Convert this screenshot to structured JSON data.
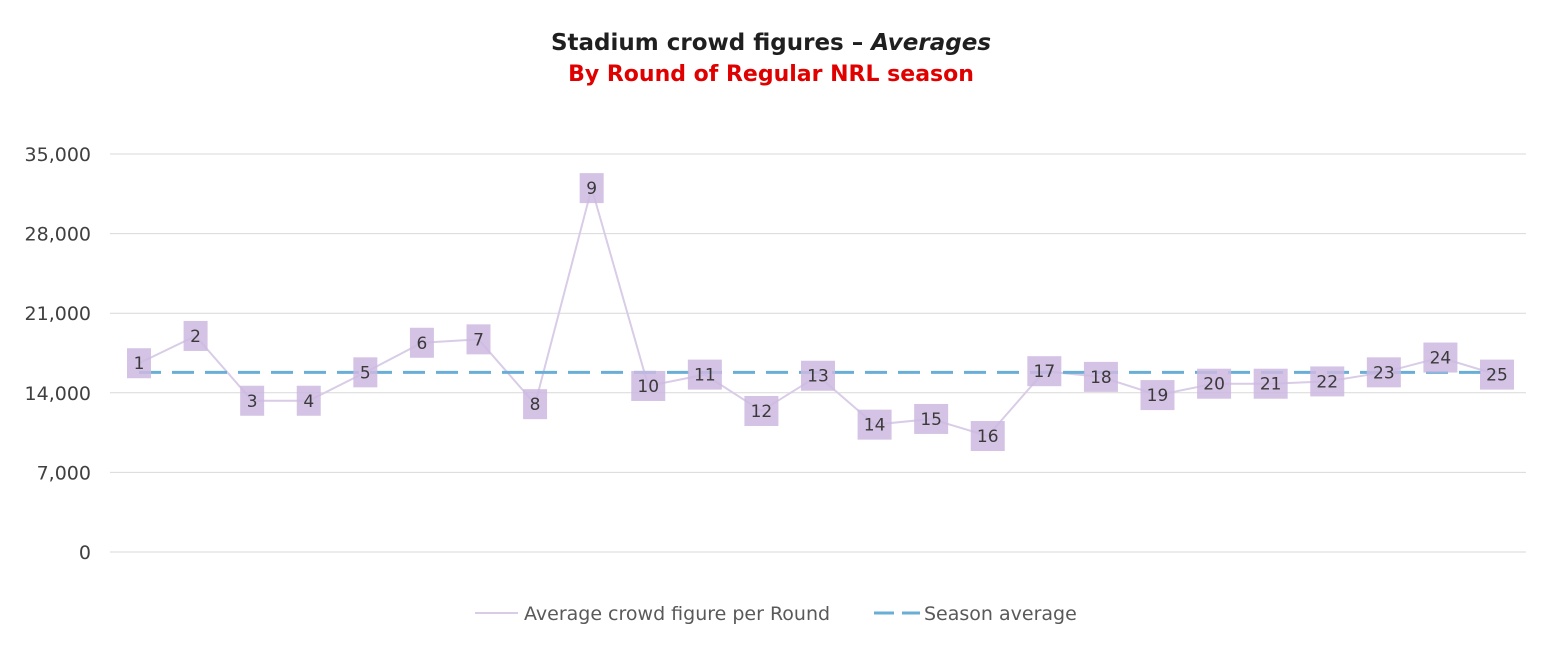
{
  "chart_data": {
    "type": "line",
    "title": "Stadium crowd figures –",
    "title_emphasis": "Averages",
    "subtitle": "By Round of Regular NRL season",
    "ylim": [
      0,
      35000
    ],
    "y_ticks": [
      0,
      7000,
      14000,
      21000,
      28000,
      35000
    ],
    "y_tick_labels": [
      "0",
      "7,000",
      "14,000",
      "21,000",
      "28,000",
      "35,000"
    ],
    "grid": true,
    "legend_position": "bottom",
    "x": [
      1,
      2,
      3,
      4,
      5,
      6,
      7,
      8,
      9,
      10,
      11,
      12,
      13,
      14,
      15,
      16,
      17,
      18,
      19,
      20,
      21,
      22,
      23,
      24,
      25
    ],
    "series": [
      {
        "name": "Average crowd figure per Round",
        "color": "#d9cce6",
        "values": [
          16600,
          19000,
          13300,
          13300,
          15800,
          18400,
          18700,
          13000,
          32000,
          14600,
          15600,
          12400,
          15500,
          11200,
          11700,
          10200,
          15900,
          15400,
          13800,
          14800,
          14800,
          15000,
          15800,
          17100,
          15600
        ],
        "point_labels": [
          "1",
          "2",
          "3",
          "4",
          "5",
          "6",
          "7",
          "8",
          "9",
          "10",
          "11",
          "12",
          "13",
          "14",
          "15",
          "16",
          "17",
          "18",
          "19",
          "20",
          "21",
          "22",
          "23",
          "24",
          "25"
        ]
      },
      {
        "name": "Season average",
        "color": "#6aaed6",
        "dash": true,
        "values": [
          15800,
          15800,
          15800,
          15800,
          15800,
          15800,
          15800,
          15800,
          15800,
          15800,
          15800,
          15800,
          15800,
          15800,
          15800,
          15800,
          15800,
          15800,
          15800,
          15800,
          15800,
          15800,
          15800,
          15800,
          15800
        ]
      }
    ],
    "marker_color": "#ccb8e0",
    "grid_color": "#d9d9d9"
  }
}
